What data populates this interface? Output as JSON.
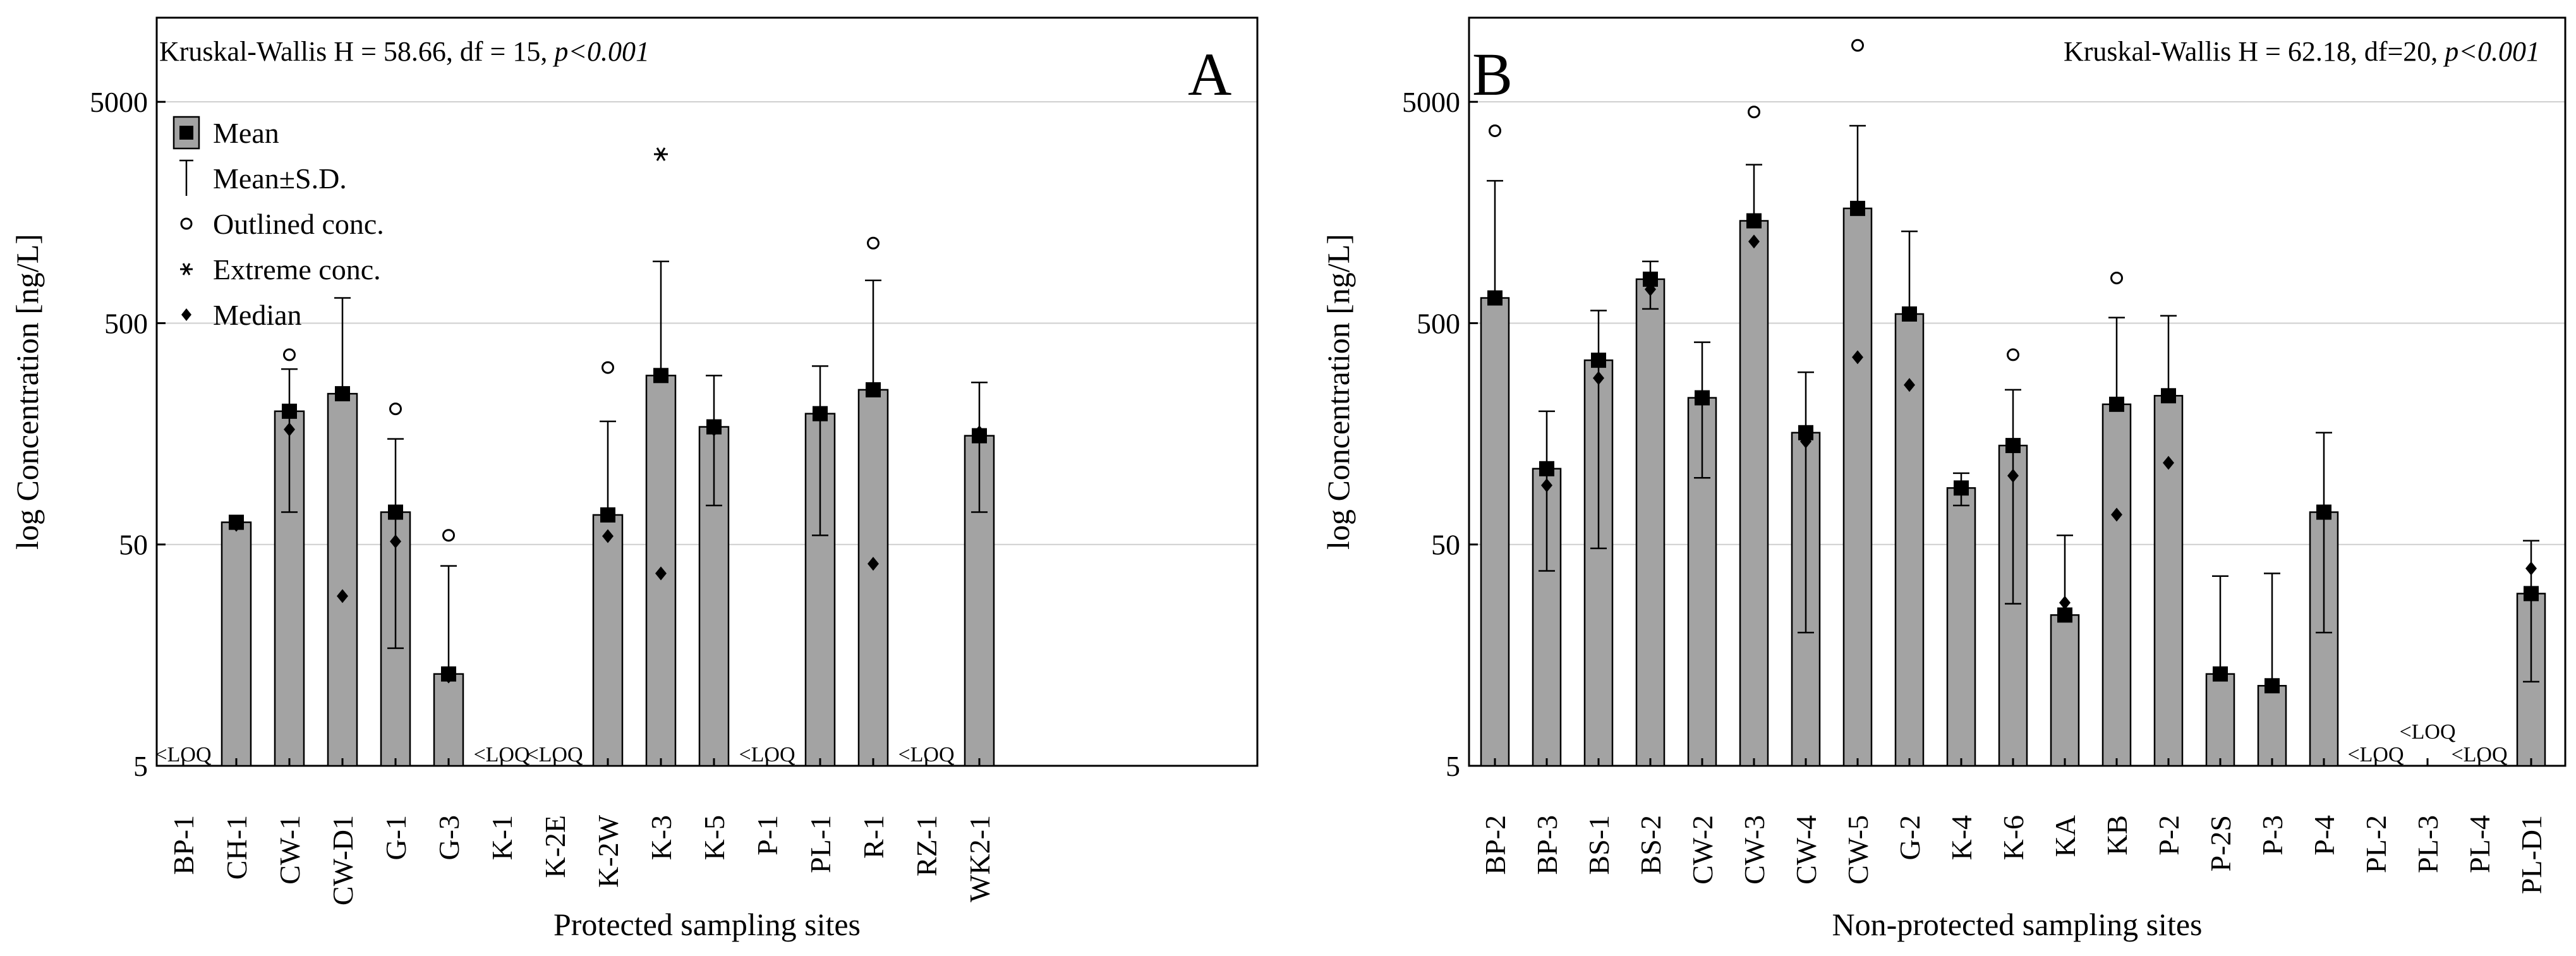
{
  "chart_data": [
    {
      "type": "bar",
      "panel_label": "A",
      "stat_text_prefix": "Kruskal-Wallis H = 58.66, df = 15, ",
      "stat_text_p": "p<0.001",
      "xlabel": "Protected sampling sites",
      "ylabel": "log Concentration [ng/L]",
      "yscale": "log",
      "ylim": [
        5,
        12000
      ],
      "yticks": [
        5,
        50,
        500,
        5000
      ],
      "ytick_labels": [
        "5",
        "50",
        "500",
        "5000"
      ],
      "grid": true,
      "legend": {
        "position": "top-left",
        "entries": [
          {
            "symbol": "mean-box",
            "label": "Mean"
          },
          {
            "symbol": "sd-whisker",
            "label": "Mean±S.D."
          },
          {
            "symbol": "circle",
            "label": "Outlined conc."
          },
          {
            "symbol": "asterisk",
            "label": "Extreme conc."
          },
          {
            "symbol": "diamond",
            "label": "Median"
          }
        ]
      },
      "loq_label": "<LOQ",
      "categories": [
        "BP-1",
        "CH-1",
        "CW-1",
        "CW-D1",
        "G-1",
        "G-3",
        "K-1",
        "K-2E",
        "K-2W",
        "K-3",
        "K-5",
        "P-1",
        "PL-1",
        "R-1",
        "RZ-1",
        "WK2-1"
      ],
      "series": [
        {
          "name": "Mean",
          "values": [
            null,
            63,
            200,
            240,
            70,
            13,
            null,
            null,
            68,
            290,
            170,
            null,
            195,
            250,
            null,
            155
          ]
        },
        {
          "name": "Mean+S.D.",
          "values": [
            null,
            null,
            310,
            650,
            150,
            40,
            null,
            null,
            180,
            950,
            290,
            null,
            320,
            780,
            null,
            270
          ]
        },
        {
          "name": "Mean-S.D.",
          "values": [
            null,
            null,
            70,
            null,
            17,
            null,
            null,
            null,
            null,
            null,
            75,
            null,
            55,
            null,
            null,
            70
          ]
        },
        {
          "name": "Median",
          "values": [
            null,
            63,
            170,
            30,
            53,
            13,
            null,
            null,
            56,
            38,
            170,
            null,
            200,
            42,
            null,
            165
          ]
        },
        {
          "name": "Outlined conc.",
          "values": [
            null,
            null,
            360,
            null,
            205,
            55,
            null,
            null,
            315,
            null,
            null,
            null,
            null,
            1150,
            null,
            null
          ]
        },
        {
          "name": "Extreme conc.",
          "values": [
            null,
            null,
            null,
            null,
            null,
            null,
            null,
            null,
            null,
            2900,
            null,
            null,
            null,
            null,
            null,
            null
          ]
        }
      ]
    },
    {
      "type": "bar",
      "panel_label": "B",
      "stat_text_prefix": "Kruskal-Wallis H = 62.18, df=20, ",
      "stat_text_p": "p<0.001",
      "xlabel": "Non-protected sampling sites",
      "ylabel": "log Concentration [ng/L]",
      "yscale": "log",
      "ylim": [
        5,
        12000
      ],
      "yticks": [
        5,
        50,
        500,
        5000
      ],
      "ytick_labels": [
        "5",
        "50",
        "500",
        "5000"
      ],
      "grid": true,
      "loq_label": "<LOQ",
      "categories": [
        "BP-2",
        "BP-3",
        "BS-1",
        "BS-2",
        "CW-2",
        "CW-3",
        "CW-4",
        "CW-5",
        "G-2",
        "K-4",
        "K-6",
        "KA",
        "KB",
        "P-2",
        "P-2S",
        "P-3",
        "P-4",
        "PL-2",
        "PL-3",
        "PL-4",
        "PL-D1"
      ],
      "series": [
        {
          "name": "Mean",
          "values": [
            650,
            110,
            340,
            790,
            230,
            1450,
            160,
            1650,
            550,
            90,
            140,
            24,
            215,
            235,
            13,
            11.5,
            70,
            null,
            null,
            null,
            30
          ]
        },
        {
          "name": "Mean+S.D.",
          "values": [
            2200,
            200,
            570,
            950,
            410,
            2600,
            300,
            3900,
            1300,
            105,
            250,
            55,
            530,
            540,
            36,
            37,
            160,
            null,
            null,
            null,
            52
          ]
        },
        {
          "name": "Mean-S.D.",
          "values": [
            null,
            38,
            48,
            580,
            100,
            null,
            20,
            null,
            null,
            75,
            27,
            null,
            null,
            null,
            null,
            null,
            20,
            null,
            null,
            null,
            12
          ]
        },
        {
          "name": "Median",
          "values": [
            null,
            95,
            290,
            730,
            null,
            1200,
            150,
            360,
            270,
            null,
            105,
            28,
            70,
            120,
            null,
            null,
            null,
            null,
            null,
            null,
            40
          ]
        },
        {
          "name": "Outlined conc.",
          "values": [
            3700,
            null,
            null,
            null,
            null,
            4500,
            null,
            9000,
            null,
            null,
            360,
            null,
            800,
            null,
            null,
            null,
            null,
            null,
            null,
            null,
            null
          ]
        }
      ]
    }
  ]
}
